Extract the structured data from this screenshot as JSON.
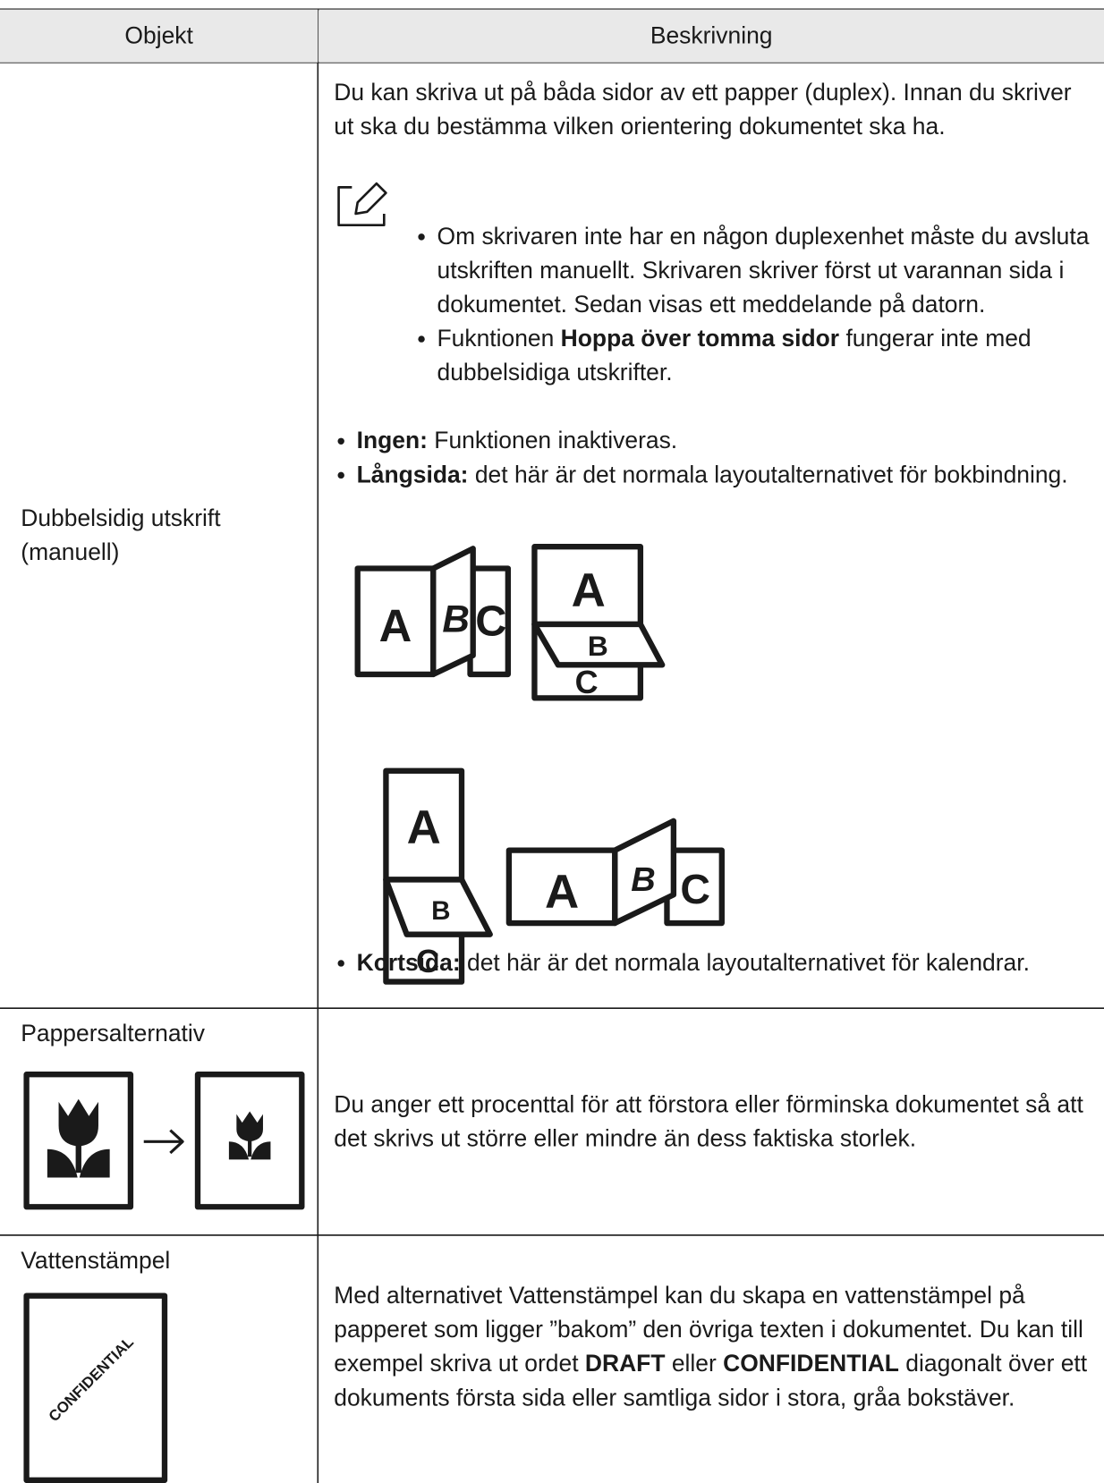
{
  "table": {
    "header": [
      "Objekt",
      "Beskrivning"
    ],
    "rows": [
      {
        "item": "Dubbelsidig utskrift (manuell)",
        "intro": "Du kan skriva ut på båda sidor av ett papper (duplex). Innan du skriver ut ska du bestämma vilken orientering dokumentet ska ha.",
        "notes": [
          [
            {
              "text": "Om skrivaren inte har en någon duplexenhet måste du avsluta utskriften manuellt. Skrivaren skriver först ut varannan sida i dokumentet. Sedan visas ett meddelande på datorn.",
              "bold": false
            }
          ],
          [
            {
              "text": "Fukntionen",
              "bold": false
            },
            {
              "text": "Hoppa över tomma sidor",
              "bold": true
            },
            {
              "text": "fungerar inte med dubbelsidiga utskrifter.",
              "bold": false
            }
          ]
        ],
        "options": [
          [
            {
              "text": "Ingen:",
              "bold": true
            },
            {
              "text": "Funktionen inaktiveras.",
              "bold": false
            }
          ],
          [
            {
              "text": "Långsida:",
              "bold": true
            },
            {
              "text": "det här är det normala layoutalternativet för bokbindning.",
              "bold": false
            }
          ],
          [
            {
              "text": "Kortsida:",
              "bold": true
            },
            {
              "text": "det här är det normala layoutalternativet för kalendrar.",
              "bold": false
            }
          ]
        ]
      },
      {
        "item": "Pappersalternativ",
        "description": [
          {
            "text": "Du anger ett procenttal för att förstora eller förminska dokumentet så att det skrivs ut större eller mindre än dess faktiska storlek.",
            "bold": false
          }
        ]
      },
      {
        "item": "Vattenstämpel",
        "description": [
          {
            "text": "Med alternativet Vattenstämpel kan du skapa en vattenstämpel på papperet som ligger ”bakom” den övriga texten i dokumentet. Du kan till exempel skriva ut ordet",
            "bold": false
          },
          {
            "text": "DRAFT",
            "bold": true
          },
          {
            "text": "eller",
            "bold": false
          },
          {
            "text": "CONFIDENTIAL",
            "bold": true
          },
          {
            "text": "diagonalt över ett dokuments första sida eller samtliga sidor i stora, gråa bokstäver.",
            "bold": false
          }
        ]
      }
    ],
    "figure_letters": [
      "A",
      "B",
      "C"
    ],
    "watermark": "CONFIDENTIAL"
  }
}
